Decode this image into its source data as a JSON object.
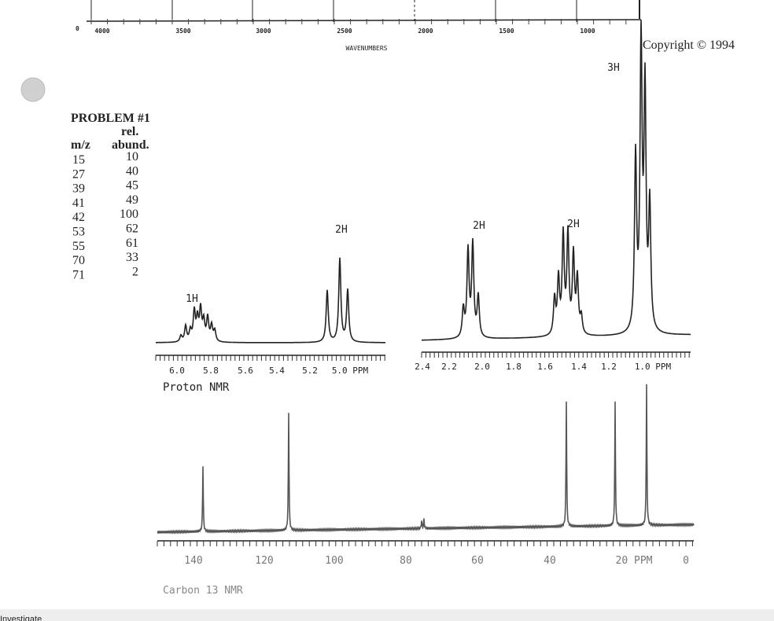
{
  "ir": {
    "zero": "0",
    "ticks": [
      "4000",
      "3500",
      "3000",
      "2500",
      "2000",
      "1500",
      "1000"
    ],
    "axis_label": "WAVENUMBERS"
  },
  "copyright": "Copyright © 1994",
  "problem": {
    "title": "PROBLEM #1",
    "header_mz": "m/z",
    "header_abund": [
      "rel.",
      "abund."
    ],
    "rows": [
      [
        "15",
        "10"
      ],
      [
        "27",
        "40"
      ],
      [
        "39",
        "45"
      ],
      [
        "41",
        "49"
      ],
      [
        "42",
        "100"
      ],
      [
        "53",
        "62"
      ],
      [
        "55",
        "61"
      ],
      [
        "70",
        "33"
      ],
      [
        "71",
        "2"
      ]
    ]
  },
  "proton_nmr": {
    "label": "Proton NMR",
    "integrals": [
      "1H",
      "2H",
      "2H",
      "2H",
      "3H"
    ],
    "left_ticks": [
      "6.0",
      "5.8",
      "5.6",
      "5.4",
      "5.2",
      "5.0 PPM"
    ],
    "right_ticks": [
      "2.4",
      "2.2",
      "2.0",
      "1.8",
      "1.6",
      "1.4",
      "1.2",
      "1.0 PPM"
    ]
  },
  "carbon_nmr": {
    "label": "Carbon 13 NMR",
    "ticks": [
      "140",
      "120",
      "100",
      "80",
      "60",
      "40",
      "20 PPM",
      "0"
    ]
  },
  "footer": "Investigate"
}
